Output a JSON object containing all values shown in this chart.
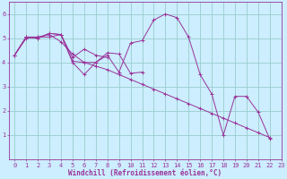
{
  "background_color": "#cceeff",
  "line_color": "#993399",
  "grid_color": "#99cccc",
  "xlabel": "Windchill (Refroidissement éolien,°C)",
  "xlabel_color": "#993399",
  "ylim": [
    0,
    6.5
  ],
  "xlim": [
    -0.5,
    23
  ],
  "yticks": [
    1,
    2,
    3,
    4,
    5,
    6
  ],
  "xticks": [
    0,
    1,
    2,
    3,
    4,
    5,
    6,
    7,
    8,
    9,
    10,
    11,
    12,
    13,
    14,
    15,
    16,
    17,
    18,
    19,
    20,
    21,
    22,
    23
  ],
  "series": [
    [
      4.3,
      5.05,
      5.05,
      5.05,
      5.15,
      4.0,
      3.5,
      4.0,
      4.3,
      3.6,
      4.8,
      4.9,
      5.75,
      6.0,
      5.85,
      5.05,
      3.5,
      2.7,
      1.0,
      2.6,
      2.6,
      1.95,
      0.85
    ],
    [
      4.3,
      5.05,
      5.0,
      5.2,
      5.15,
      4.05,
      4.0,
      4.0,
      4.4,
      4.35,
      3.55,
      3.6,
      null,
      null,
      null,
      null,
      null,
      null,
      null,
      null,
      null,
      null,
      null
    ],
    [
      4.3,
      5.05,
      5.0,
      5.2,
      5.15,
      4.2,
      4.55,
      4.3,
      4.2,
      null,
      null,
      null,
      null,
      null,
      null,
      null,
      null,
      null,
      null,
      null,
      null,
      null,
      null
    ],
    [
      4.3,
      5.0,
      5.05,
      5.15,
      4.85,
      4.35,
      4.0,
      3.85,
      3.7,
      3.5,
      3.3,
      3.1,
      2.9,
      2.7,
      2.5,
      2.3,
      2.1,
      1.9,
      1.7,
      1.5,
      1.3,
      1.1,
      0.9
    ]
  ],
  "axis_fontsize": 5.5,
  "tick_fontsize": 5.0,
  "linewidth": 0.7,
  "markersize": 2.5
}
